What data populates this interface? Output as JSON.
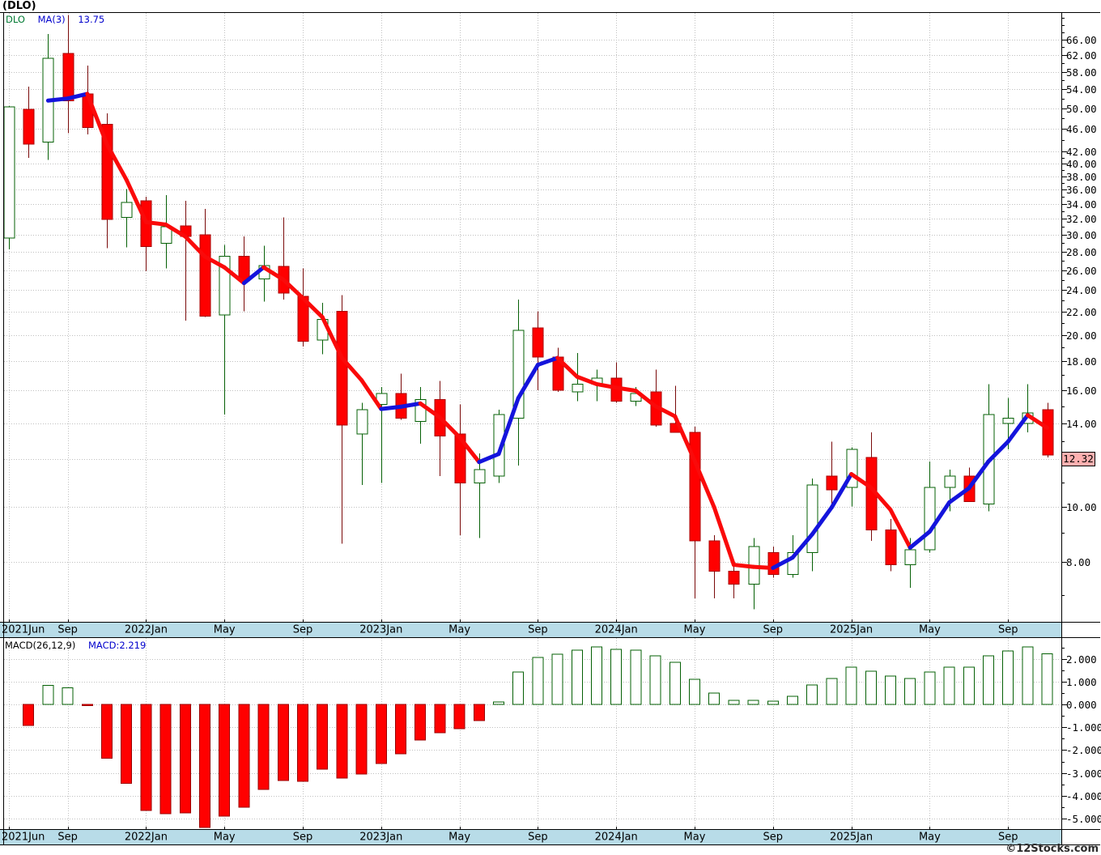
{
  "title": "(DLO)",
  "watermark": "©12Stocks.com",
  "price_panel": {
    "legend": {
      "symbol": "DLO",
      "ma_label": "MA(3)",
      "ma_value": "13.75"
    },
    "current_price_label": "12.32"
  },
  "macd_panel": {
    "label": "MACD(26,12,9)",
    "value": "MACD:2.219"
  },
  "colors": {
    "up_fill": "#FFFFFF",
    "up_edge": "#056005",
    "down_fill": "#FF0000",
    "down_edge": "#A80000",
    "down_wick": "#7A0A0A",
    "ma_up": "#1414DC",
    "ma_down": "#FA0A0A",
    "band": "#B8DCE8",
    "grid": "#C0C0C0",
    "border": "#000000",
    "tag_bg": "#FFB0B0",
    "macd_pos_fill": "#FFFFFF",
    "macd_pos_edge": "#056005",
    "macd_neg_fill": "#FF0000",
    "macd_neg_edge": "#990000"
  },
  "chart_data": {
    "type": "candlestick+macd",
    "symbol": "DLO",
    "ma_period": 3,
    "price_scale": "log",
    "price_axis_labels": [
      66,
      62,
      58,
      54,
      50,
      46,
      42,
      40,
      38,
      36,
      34,
      32,
      30,
      28,
      26,
      24,
      22,
      20,
      18,
      16,
      14,
      10,
      8
    ],
    "price_axis_minor_ticks": [
      7,
      9,
      11,
      13,
      15,
      17,
      19,
      21,
      23,
      25,
      27,
      29,
      31,
      33,
      35,
      37,
      39,
      41,
      44,
      48,
      52,
      56,
      60,
      64,
      68,
      70,
      72
    ],
    "current_price": 12.32,
    "current_ma_value": 13.75,
    "current_macd_value": 2.219,
    "macd_axis_labels": [
      2,
      1,
      0,
      -1,
      -2,
      -3,
      -4,
      -5
    ],
    "x_tick_indices": [
      0,
      3,
      7,
      11,
      15,
      19,
      23,
      27,
      31,
      35,
      39,
      43,
      47,
      51
    ],
    "x_tick_labels": [
      "2021Jun",
      "Sep",
      "2022Jan",
      "May",
      "Sep",
      "2023Jan",
      "May",
      "Sep",
      "2024Jan",
      "May",
      "Sep",
      "2025Jan",
      "May",
      "Sep"
    ],
    "months": [
      "2021-06",
      "2021-07",
      "2021-08",
      "2021-09",
      "2021-10",
      "2021-11",
      "2021-12",
      "2022-01",
      "2022-02",
      "2022-03",
      "2022-04",
      "2022-05",
      "2022-06",
      "2022-07",
      "2022-08",
      "2022-09",
      "2022-10",
      "2022-11",
      "2022-12",
      "2023-01",
      "2023-02",
      "2023-03",
      "2023-04",
      "2023-05",
      "2023-06",
      "2023-07",
      "2023-08",
      "2023-09",
      "2023-10",
      "2023-11",
      "2023-12",
      "2024-01",
      "2024-02",
      "2024-03",
      "2024-04",
      "2024-05",
      "2024-06",
      "2024-07",
      "2024-08",
      "2024-09",
      "2024-10",
      "2024-11",
      "2024-12",
      "2025-01",
      "2025-02",
      "2025-03",
      "2025-04",
      "2025-05",
      "2025-06",
      "2025-07",
      "2025-08",
      "2025-09",
      "2025-10",
      "2025-11"
    ],
    "open": [
      29.6,
      49.8,
      43.6,
      62.4,
      53.0,
      46.9,
      32.2,
      34.4,
      29.0,
      31.1,
      30.0,
      21.7,
      27.5,
      25.1,
      26.4,
      23.4,
      19.6,
      22.0,
      13.4,
      15.1,
      15.8,
      14.1,
      15.4,
      13.4,
      11.0,
      11.3,
      14.3,
      20.6,
      18.3,
      15.9,
      16.4,
      16.8,
      15.3,
      15.9,
      14.0,
      13.5,
      8.7,
      7.7,
      7.3,
      8.3,
      7.6,
      8.3,
      11.3,
      10.8,
      12.2,
      9.1,
      7.9,
      8.4,
      10.8,
      11.3,
      10.1,
      14.0,
      14.0,
      14.8
    ],
    "high": [
      50.5,
      54.6,
      67.5,
      73.0,
      59.4,
      49.0,
      36.1,
      35.0,
      35.2,
      34.4,
      33.3,
      28.8,
      29.8,
      28.7,
      32.2,
      26.2,
      22.8,
      23.5,
      15.2,
      16.2,
      17.1,
      16.2,
      16.6,
      15.1,
      12.4,
      14.8,
      23.1,
      22.0,
      19.0,
      18.6,
      17.4,
      17.9,
      16.2,
      17.4,
      16.3,
      13.8,
      8.9,
      7.9,
      8.8,
      8.5,
      8.9,
      11.2,
      13.0,
      12.7,
      13.5,
      9.5,
      8.8,
      12.0,
      11.6,
      11.7,
      16.4,
      15.5,
      16.4,
      15.2
    ],
    "low": [
      28.3,
      40.9,
      40.6,
      45.2,
      45.0,
      28.4,
      28.5,
      25.9,
      26.2,
      21.2,
      21.5,
      14.5,
      22.0,
      22.9,
      23.1,
      19.1,
      18.5,
      8.6,
      10.9,
      11.0,
      14.2,
      12.9,
      11.3,
      8.9,
      8.8,
      11.0,
      11.8,
      16.0,
      15.9,
      15.3,
      15.3,
      15.2,
      15.0,
      13.8,
      13.5,
      6.9,
      6.9,
      6.9,
      6.6,
      7.5,
      7.5,
      7.7,
      10.1,
      10.0,
      8.7,
      7.7,
      7.2,
      8.3,
      9.8,
      10.2,
      9.8,
      12.6,
      13.5,
      12.2
    ],
    "close": [
      50.3,
      43.3,
      61.2,
      51.6,
      46.3,
      31.9,
      34.2,
      28.6,
      31.0,
      29.8,
      21.6,
      27.5,
      24.9,
      26.5,
      23.7,
      19.5,
      21.3,
      13.9,
      14.8,
      15.8,
      14.3,
      15.4,
      13.3,
      11.0,
      11.6,
      14.5,
      20.4,
      18.3,
      16.0,
      16.4,
      16.8,
      15.3,
      15.8,
      13.9,
      13.5,
      8.7,
      7.7,
      7.3,
      8.5,
      7.6,
      8.3,
      10.9,
      10.7,
      12.6,
      9.1,
      7.9,
      8.4,
      10.8,
      11.3,
      10.2,
      14.5,
      14.3,
      14.6,
      12.32
    ],
    "macd": [
      null,
      -0.92,
      0.83,
      0.72,
      -0.05,
      -2.35,
      -3.45,
      -4.65,
      -4.79,
      -4.75,
      -5.45,
      -4.89,
      -4.5,
      -3.72,
      -3.33,
      -3.37,
      -2.84,
      -3.23,
      -3.05,
      -2.59,
      -2.16,
      -1.56,
      -1.24,
      -1.06,
      -0.71,
      0.1,
      1.42,
      2.06,
      2.2,
      2.38,
      2.52,
      2.41,
      2.38,
      2.13,
      1.84,
      1.1,
      0.5,
      0.18,
      0.18,
      0.14,
      0.35,
      0.85,
      1.13,
      1.63,
      1.45,
      1.24,
      1.13,
      1.42,
      1.63,
      1.63,
      2.13,
      2.34,
      2.52,
      2.219
    ]
  }
}
